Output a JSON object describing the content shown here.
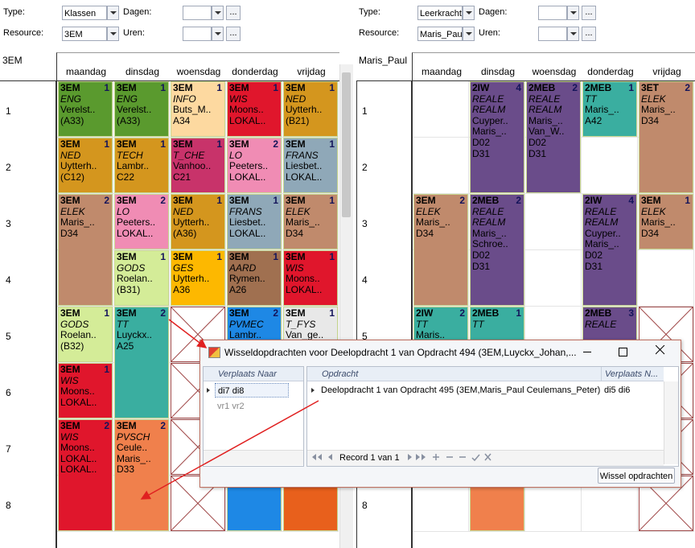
{
  "panels": [
    {
      "controls": {
        "type_label": "Type:",
        "type_value": "Klassen",
        "dagen_label": "Dagen:",
        "resource_label": "Resource:",
        "resource_value": "3EM",
        "uren_label": "Uren:",
        "browse": "..."
      },
      "grid": {
        "resource": "3EM",
        "days": [
          "maandag",
          "dinsdag",
          "woensdag",
          "donderdag",
          "vrijdag"
        ],
        "hours": [
          "1",
          "2",
          "3",
          "4",
          "5",
          "6",
          "7",
          "8"
        ],
        "lessons": [
          {
            "day": 0,
            "hour": 1,
            "span": 1,
            "color": "#5a9a2e",
            "class": "3EM",
            "count": "1",
            "lines": [
              "ENG",
              "Verelst..",
              "(A33)"
            ]
          },
          {
            "day": 1,
            "hour": 1,
            "span": 1,
            "color": "#5a9a2e",
            "class": "3EM",
            "count": "1",
            "lines": [
              "ENG",
              "Verelst..",
              "(A33)"
            ]
          },
          {
            "day": 2,
            "hour": 1,
            "span": 1,
            "color": "#fdd9a0",
            "class": "3EM",
            "count": "1",
            "lines": [
              "INFO",
              "Buts_M..",
              "A34"
            ]
          },
          {
            "day": 3,
            "hour": 1,
            "span": 1,
            "color": "#e0162c",
            "class": "3EM",
            "count": "1",
            "lines": [
              "WIS",
              "Moons..",
              "LOKAL.."
            ]
          },
          {
            "day": 4,
            "hour": 1,
            "span": 1,
            "color": "#d4961e",
            "class": "3EM",
            "count": "1",
            "lines": [
              "NED",
              "Uytterh..",
              "(B21)"
            ]
          },
          {
            "day": 0,
            "hour": 2,
            "span": 1,
            "color": "#d4961e",
            "class": "3EM",
            "count": "1",
            "lines": [
              "NED",
              "Uytterh..",
              "(C12)"
            ]
          },
          {
            "day": 1,
            "hour": 2,
            "span": 1,
            "color": "#d4961e",
            "class": "3EM",
            "count": "1",
            "lines": [
              "TECH",
              "Lambr..",
              "C22"
            ]
          },
          {
            "day": 2,
            "hour": 2,
            "span": 1,
            "color": "#c8336a",
            "class": "3EM",
            "count": "1",
            "lines": [
              "T_CHE",
              "Vanhoo..",
              "C21"
            ]
          },
          {
            "day": 3,
            "hour": 2,
            "span": 1,
            "color": "#f08cb4",
            "class": "3EM",
            "count": "2",
            "lines": [
              "LO",
              "Peeters..",
              "LOKAL.."
            ]
          },
          {
            "day": 4,
            "hour": 2,
            "span": 1,
            "color": "#8fa8b8",
            "class": "3EM",
            "count": "1",
            "lines": [
              "FRANS",
              "Liesbet..",
              "LOKAL.."
            ]
          },
          {
            "day": 0,
            "hour": 3,
            "span": 2,
            "color": "#c08a6c",
            "class": "3EM",
            "count": "2",
            "lines": [
              "ELEK",
              "Maris_..",
              "D34"
            ]
          },
          {
            "day": 1,
            "hour": 3,
            "span": 1,
            "color": "#f08cb4",
            "class": "3EM",
            "count": "2",
            "lines": [
              "LO",
              "Peeters..",
              "LOKAL.."
            ]
          },
          {
            "day": 2,
            "hour": 3,
            "span": 1,
            "color": "#d4961e",
            "class": "3EM",
            "count": "1",
            "lines": [
              "NED",
              "Uytterh..",
              "(A36)"
            ]
          },
          {
            "day": 3,
            "hour": 3,
            "span": 1,
            "color": "#8fa8b8",
            "class": "3EM",
            "count": "1",
            "lines": [
              "FRANS",
              "Liesbet..",
              "LOKAL.."
            ]
          },
          {
            "day": 4,
            "hour": 3,
            "span": 1,
            "color": "#c08a6c",
            "class": "3EM",
            "count": "1",
            "lines": [
              "ELEK",
              "Maris_..",
              "D34"
            ]
          },
          {
            "day": 1,
            "hour": 4,
            "span": 1,
            "color": "#d4ec98",
            "class": "3EM",
            "count": "1",
            "lines": [
              "GODS",
              "Roelan..",
              "(B31)"
            ]
          },
          {
            "day": 2,
            "hour": 4,
            "span": 1,
            "color": "#fdb800",
            "class": "3EM",
            "count": "1",
            "lines": [
              "GES",
              "Uytterh..",
              "A36"
            ]
          },
          {
            "day": 3,
            "hour": 4,
            "span": 1,
            "color": "#a07050",
            "class": "3EM",
            "count": "1",
            "lines": [
              "AARD",
              "Rymen..",
              "A26"
            ]
          },
          {
            "day": 4,
            "hour": 4,
            "span": 1,
            "color": "#e0162c",
            "class": "3EM",
            "count": "1",
            "lines": [
              "WIS",
              "Moons..",
              "LOKAL.."
            ]
          },
          {
            "day": 0,
            "hour": 5,
            "span": 1,
            "color": "#d4ec98",
            "class": "3EM",
            "count": "1",
            "lines": [
              "GODS",
              "Roelan..",
              "(B32)"
            ]
          },
          {
            "day": 1,
            "hour": 5,
            "span": 2,
            "color": "#3aaea0",
            "class": "3EM",
            "count": "2",
            "lines": [
              "TT",
              "Luyckx..",
              "A25"
            ]
          },
          {
            "day": 3,
            "hour": 5,
            "span": 2,
            "color": "#1e88e5",
            "class": "3EM",
            "count": "2",
            "lines": [
              "PVMEC",
              "Lambr.."
            ]
          },
          {
            "day": 4,
            "hour": 5,
            "span": 2,
            "color": "#e8e8e8",
            "class": "3EM",
            "count": "1",
            "lines": [
              "T_FYS",
              "Van_ge.."
            ]
          },
          {
            "day": 0,
            "hour": 6,
            "span": 1,
            "color": "#e0162c",
            "class": "3EM",
            "count": "1",
            "lines": [
              "WIS",
              "Moons..",
              "LOKAL.."
            ]
          },
          {
            "day": 0,
            "hour": 7,
            "span": 2,
            "color": "#e0162c",
            "class": "3EM",
            "count": "2",
            "lines": [
              "WIS",
              "Moons..",
              "LOKAL..",
              "LOKAL.."
            ]
          },
          {
            "day": 1,
            "hour": 7,
            "span": 2,
            "color": "#f0804c",
            "class": "3EM",
            "count": "2",
            "lines": [
              "PVSCH",
              "Ceule..",
              "Maris_..",
              "D33"
            ]
          },
          {
            "day": 3,
            "hour": 7,
            "span": 2,
            "color": "#1e88e5"
          },
          {
            "day": 4,
            "hour": 7,
            "span": 2,
            "color": "#e8601c"
          }
        ],
        "blocked": [
          {
            "day": 2,
            "hour": 5
          },
          {
            "day": 2,
            "hour": 6
          },
          {
            "day": 2,
            "hour": 7
          },
          {
            "day": 2,
            "hour": 8
          }
        ]
      }
    },
    {
      "controls": {
        "type_label": "Type:",
        "type_value": "Leerkracht",
        "dagen_label": "Dagen:",
        "resource_label": "Resource:",
        "resource_value": "Maris_Paul",
        "uren_label": "Uren:",
        "browse": "..."
      },
      "grid": {
        "resource": "Maris_Paul",
        "days": [
          "maandag",
          "dinsdag",
          "woensdag",
          "donderdag",
          "vrijdag"
        ],
        "hours": [
          "1",
          "2",
          "3",
          "4",
          "5",
          "6",
          "7",
          "8"
        ],
        "lessons": [
          {
            "day": 1,
            "hour": 1,
            "span": 2,
            "color": "#6a4c8a",
            "class": "2IW",
            "count": "4",
            "lines": [
              "REALE",
              "REALM",
              "Cuyper..",
              "Maris_..",
              "D02",
              "D31"
            ]
          },
          {
            "day": 2,
            "hour": 1,
            "span": 2,
            "color": "#6a4c8a",
            "class": "2MEB",
            "count": "2",
            "lines": [
              "REALE",
              "REALM",
              "Maris_..",
              "Van_W..",
              "D02",
              "D31"
            ]
          },
          {
            "day": 3,
            "hour": 1,
            "span": 1,
            "color": "#3aaea0",
            "class": "2MEB",
            "count": "1",
            "lines": [
              "TT",
              "Maris_..",
              "A42"
            ]
          },
          {
            "day": 4,
            "hour": 1,
            "span": 2,
            "color": "#c08a6c",
            "class": "3ET",
            "count": "2",
            "lines": [
              "ELEK",
              "Maris_..",
              "D34"
            ]
          },
          {
            "day": 0,
            "hour": 3,
            "span": 2,
            "color": "#c08a6c",
            "class": "3EM",
            "count": "2",
            "lines": [
              "ELEK",
              "Maris_..",
              "D34"
            ]
          },
          {
            "day": 1,
            "hour": 3,
            "span": 2,
            "color": "#6a4c8a",
            "class": "2MEB",
            "count": "2",
            "lines": [
              "REALE",
              "REALM",
              "Maris_..",
              "Schroe..",
              "D02",
              "D31"
            ]
          },
          {
            "day": 3,
            "hour": 3,
            "span": 2,
            "color": "#6a4c8a",
            "class": "2IW",
            "count": "4",
            "lines": [
              "REALE",
              "REALM",
              "Cuyper..",
              "Maris_..",
              "D02",
              "D31"
            ]
          },
          {
            "day": 4,
            "hour": 3,
            "span": 1,
            "color": "#c08a6c",
            "class": "3EM",
            "count": "1",
            "lines": [
              "ELEK",
              "Maris_..",
              "D34"
            ]
          },
          {
            "day": 0,
            "hour": 5,
            "span": 2,
            "color": "#3aaea0",
            "class": "2IW",
            "count": "2",
            "lines": [
              "TT",
              "Maris.."
            ]
          },
          {
            "day": 1,
            "hour": 5,
            "span": 2,
            "color": "#3aaea0",
            "class": "2MEB",
            "count": "1",
            "lines": [
              "TT"
            ]
          },
          {
            "day": 3,
            "hour": 5,
            "span": 2,
            "color": "#6a4c8a",
            "class": "2MEB",
            "count": "3",
            "lines": [
              "REALE"
            ]
          },
          {
            "day": 1,
            "hour": 7,
            "span": 2,
            "color": "#f0804c"
          }
        ],
        "blocked": [
          {
            "day": 4,
            "hour": 5
          },
          {
            "day": 4,
            "hour": 6
          },
          {
            "day": 4,
            "hour": 7
          },
          {
            "day": 4,
            "hour": 8
          }
        ]
      }
    }
  ],
  "dialog": {
    "title": "Wisseldopdrachten voor Deelopdracht 1 van Opdracht 494 (3EM,Luyckx_Johan,...",
    "left_table": {
      "header": "Verplaats Naar",
      "rows": [
        "di7 di8",
        "vr1 vr2"
      ]
    },
    "right_table": {
      "headers": [
        "Opdracht",
        "Verplaats N..."
      ],
      "rows": [
        [
          "Deelopdracht 1 van Opdracht 495 (3EM,Maris_Paul Ceulemans_Peter)",
          "di5 di6"
        ]
      ]
    },
    "navigator": "Record 1 van 1",
    "button": "Wissel opdrachten"
  }
}
